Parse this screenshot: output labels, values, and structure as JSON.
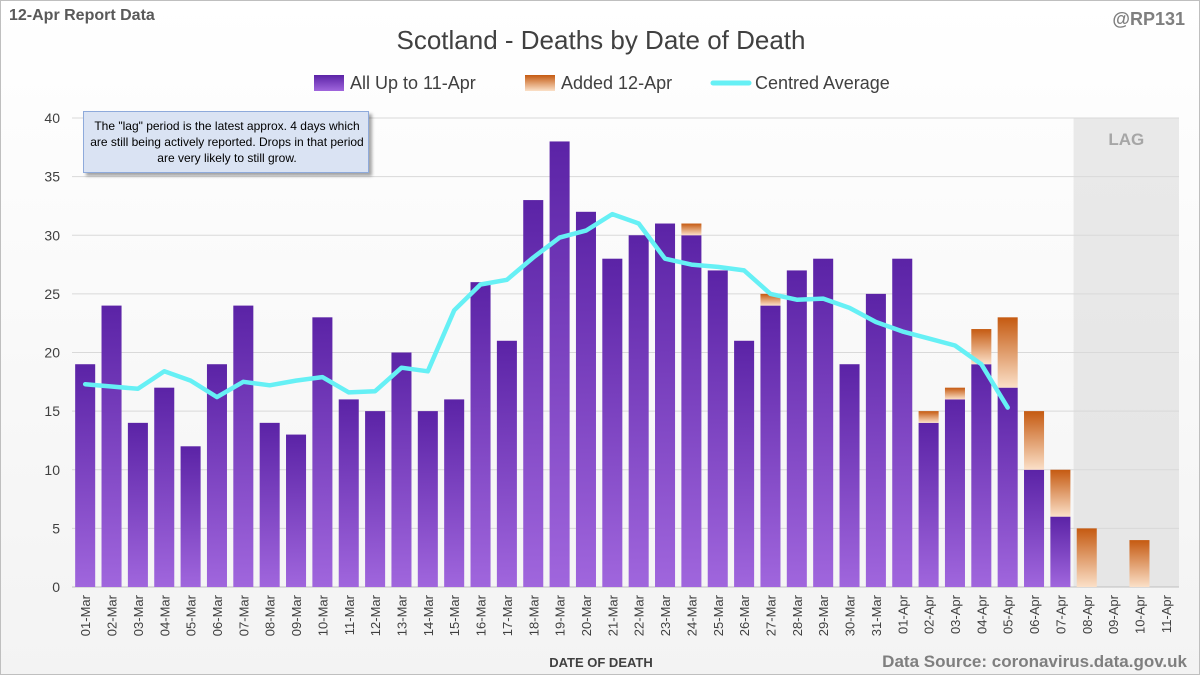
{
  "header": {
    "report_label": "12-Apr Report Data",
    "handle": "@RP131"
  },
  "note": "The \"lag\" period is the latest approx. 4 days which are still being actively reported. Drops in that period are very likely to still grow.",
  "source": "Data Source: coronavirus.data.gov.uk",
  "lag_label": "LAG",
  "colors": {
    "base_bar_top": "#5b23a6",
    "base_bar_bottom": "#a066dd",
    "added_bar_top": "#c55a11",
    "added_bar_bottom": "#fbe0c8",
    "average_line": "#66f0f5",
    "lag_shade": "#d9d9d9"
  },
  "chart_data": {
    "type": "bar",
    "stacked": true,
    "title": "Scotland - Deaths by Date of Death",
    "xlabel": "DATE OF DEATH",
    "ylabel": "",
    "ylim": [
      0,
      40
    ],
    "yticks": [
      0,
      5,
      10,
      15,
      20,
      25,
      30,
      35,
      40
    ],
    "grid": true,
    "legend_position": "top",
    "lag_categories": [
      "08-Apr",
      "09-Apr",
      "10-Apr",
      "11-Apr"
    ],
    "categories": [
      "01-Mar",
      "02-Mar",
      "03-Mar",
      "04-Mar",
      "05-Mar",
      "06-Mar",
      "07-Mar",
      "08-Mar",
      "09-Mar",
      "10-Mar",
      "11-Mar",
      "12-Mar",
      "13-Mar",
      "14-Mar",
      "15-Mar",
      "16-Mar",
      "17-Mar",
      "18-Mar",
      "19-Mar",
      "20-Mar",
      "21-Mar",
      "22-Mar",
      "23-Mar",
      "24-Mar",
      "25-Mar",
      "26-Mar",
      "27-Mar",
      "28-Mar",
      "29-Mar",
      "30-Mar",
      "31-Mar",
      "01-Apr",
      "02-Apr",
      "03-Apr",
      "04-Apr",
      "05-Apr",
      "06-Apr",
      "07-Apr",
      "08-Apr",
      "09-Apr",
      "10-Apr",
      "11-Apr"
    ],
    "series": [
      {
        "name": "All Up to 11-Apr",
        "kind": "bar",
        "values": [
          19,
          24,
          14,
          17,
          12,
          19,
          24,
          14,
          13,
          23,
          16,
          15,
          20,
          15,
          16,
          26,
          21,
          33,
          38,
          32,
          28,
          30,
          31,
          30,
          27,
          21,
          24,
          27,
          28,
          19,
          25,
          28,
          14,
          16,
          19,
          17,
          10,
          6,
          0,
          0,
          0,
          0
        ]
      },
      {
        "name": "Added 12-Apr",
        "kind": "bar",
        "values": [
          0,
          0,
          0,
          0,
          0,
          0,
          0,
          0,
          0,
          0,
          0,
          0,
          0,
          0,
          0,
          0,
          0,
          0,
          0,
          0,
          0,
          0,
          0,
          1,
          0,
          0,
          1,
          0,
          0,
          0,
          0,
          0,
          1,
          1,
          3,
          6,
          5,
          4,
          5,
          0,
          4,
          0
        ]
      },
      {
        "name": "Centred Average",
        "kind": "line",
        "values": [
          17.3,
          17.1,
          16.9,
          18.4,
          17.6,
          16.2,
          17.5,
          17.2,
          17.6,
          17.9,
          16.6,
          16.7,
          18.7,
          18.4,
          23.6,
          25.8,
          26.2,
          28.1,
          29.8,
          30.4,
          31.8,
          31.0,
          28.0,
          27.5,
          27.3,
          27.0,
          25.0,
          24.5,
          24.6,
          23.8,
          22.6,
          21.8,
          21.2,
          20.6,
          19.0,
          15.3,
          null,
          null,
          null,
          null,
          null,
          null
        ]
      }
    ]
  }
}
